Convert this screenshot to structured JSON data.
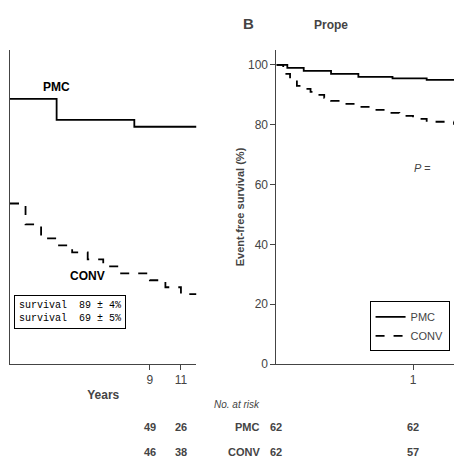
{
  "chart_data": [
    {
      "type": "step",
      "xlabel": "Years",
      "series": [
        {
          "name": "PMC",
          "color": "#000000",
          "line_style": "solid",
          "x": [
            0,
            3,
            3,
            8,
            8,
            12
          ],
          "values": [
            93,
            93,
            90,
            90,
            89,
            89
          ]
        },
        {
          "name": "CONV",
          "color": "#000000",
          "line_style": "dashed",
          "x": [
            0,
            1,
            2,
            3,
            4,
            5,
            6,
            7,
            8,
            9,
            10,
            11,
            12
          ],
          "values": [
            78,
            75,
            73,
            72,
            71,
            70,
            69,
            68,
            68,
            67,
            66,
            65,
            65
          ]
        }
      ],
      "xlim": [
        0,
        12
      ],
      "ylim": [
        55,
        100
      ],
      "xticks": [
        9,
        11
      ],
      "yticks": [],
      "tick_labels": "x",
      "grid": false,
      "annotations": [
        "survival  89 ± 4%",
        "survival  69 ± 5%"
      ],
      "at_risk": {
        "x": [
          9,
          11
        ],
        "series": [
          {
            "values": [
              49,
              26
            ]
          },
          {
            "values": [
              46,
              38
            ]
          }
        ]
      }
    },
    {
      "type": "step",
      "panel_label": "B",
      "title": "Prope",
      "ylabel": "Event-free survival (%)",
      "series": [
        {
          "name": "PMC",
          "color": "#000000",
          "line_style": "solid",
          "x": [
            0,
            0.08,
            0.08,
            0.2,
            0.2,
            0.4,
            0.4,
            0.6,
            0.6,
            0.85,
            0.85,
            1.1,
            1.1,
            1.3
          ],
          "values": [
            100,
            100,
            99,
            99,
            98,
            98,
            97,
            97,
            96,
            96,
            95.5,
            95.5,
            95,
            95
          ]
        },
        {
          "name": "CONV",
          "color": "#000000",
          "line_style": "dashed",
          "x": [
            0,
            0.05,
            0.1,
            0.15,
            0.2,
            0.25,
            0.3,
            0.35,
            0.4,
            0.5,
            0.6,
            0.7,
            0.8,
            0.9,
            1.0,
            1.1,
            1.2,
            1.3
          ],
          "values": [
            100,
            97,
            95,
            93,
            92,
            91,
            90,
            89,
            88,
            87,
            86,
            85,
            84,
            83,
            82,
            81,
            81,
            80
          ]
        }
      ],
      "xlim": [
        0,
        1.3
      ],
      "ylim": [
        0,
        105
      ],
      "xticks": [
        1
      ],
      "yticks": [
        0,
        20,
        40,
        60,
        80,
        100
      ],
      "grid": false,
      "legend": "lower right",
      "annotations": [
        "P ="
      ],
      "at_risk": {
        "label": "No. at risk",
        "x": [
          0,
          1
        ],
        "series": [
          {
            "name": "PMC",
            "values": [
              62,
              62
            ]
          },
          {
            "name": "CONV",
            "values": [
              62,
              57
            ]
          }
        ]
      }
    }
  ]
}
